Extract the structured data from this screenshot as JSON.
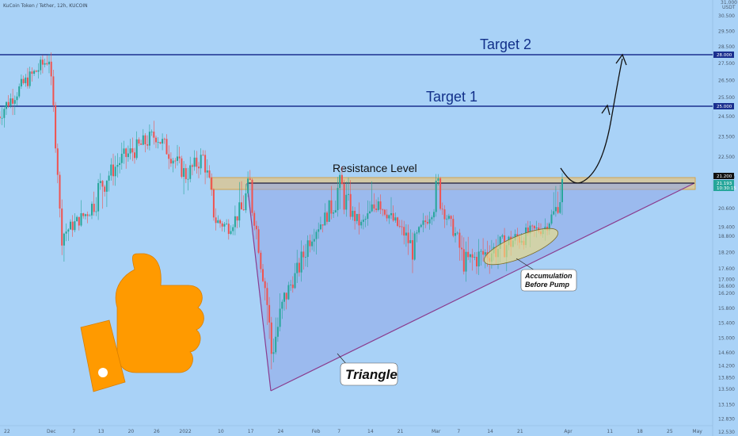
{
  "header": {
    "symbol": "KuCoin Token / Tether, 12h, KUCOIN",
    "currency_top": "31.000",
    "currency_unit": "USDT"
  },
  "annotations": {
    "target1": "Target 1",
    "target2": "Target 2",
    "resistance": "Resistance Level",
    "triangle": "Triangle",
    "accumulation_line1": "Accumulation",
    "accumulation_line2": "Before Pump"
  },
  "price_tags": {
    "target2": "28.000",
    "target1": "25.000",
    "resistance": "21.200",
    "last_price": "21.193",
    "last_time": "10:30:15"
  },
  "colors": {
    "background": "#a9d2f7",
    "bull": "#26a69a",
    "bear": "#ef5350",
    "target_line": "#1a2f8f",
    "resistance_zone": "#e8c37a",
    "triangle_fill": "#8fa5e8",
    "triangle_edge": "#8a3d8f",
    "thumb": "#ff9a00",
    "accumulation_fill": "#eedf84"
  },
  "chart_data": {
    "type": "candlestick",
    "y_axis_ticks": [
      "30.500",
      "29.500",
      "28.500",
      "27.500",
      "26.500",
      "25.500",
      "24.500",
      "23.500",
      "22.500",
      "21.500",
      "20.600",
      "19.400",
      "18.800",
      "18.200",
      "17.600",
      "17.000",
      "16.600",
      "16.200",
      "15.800",
      "15.400",
      "15.000",
      "14.600",
      "14.200",
      "13.850",
      "13.500",
      "13.150",
      "12.830",
      "12.530"
    ],
    "x_axis_ticks": [
      "22",
      "Dec",
      "7",
      "13",
      "20",
      "26",
      "2022",
      "10",
      "17",
      "24",
      "Feb",
      "7",
      "14",
      "21",
      "Mar",
      "7",
      "14",
      "21",
      "Apr",
      "11",
      "18",
      "25",
      "May"
    ],
    "levels": {
      "target2": 28.0,
      "target1": 25.0,
      "resistance": 21.2,
      "last_price": 21.193
    },
    "resistance_zone": [
      20.95,
      21.35
    ],
    "triangle": {
      "apex_left": [
        "Jan 17",
        21.2
      ],
      "bottom": [
        "Jan 22",
        13.5
      ],
      "apex_right": [
        "May",
        21.2
      ]
    },
    "segments": [
      [
        "Nov 20",
        24.5
      ],
      [
        "Nov 26",
        26.3
      ],
      [
        "Dec 1",
        27.8
      ],
      [
        "Dec 4",
        18.9
      ],
      [
        "Dec 11",
        20.6
      ],
      [
        "Dec 18",
        22.4
      ],
      [
        "Dec 26",
        23.6
      ],
      [
        "Jan 2",
        21.6
      ],
      [
        "Jan 6",
        22.5
      ],
      [
        "Jan 9",
        19.8
      ],
      [
        "Jan 12",
        19.4
      ],
      [
        "Jan 17",
        21.2
      ],
      [
        "Jan 22",
        14.6
      ],
      [
        "Jan 31",
        18.8
      ],
      [
        "Feb 7",
        21.2
      ],
      [
        "Feb 12",
        19.5
      ],
      [
        "Feb 16",
        21.0
      ],
      [
        "Feb 24",
        18.3
      ],
      [
        "Mar 2",
        21.2
      ],
      [
        "Mar 8",
        17.8
      ],
      [
        "Mar 18",
        18.5
      ],
      [
        "Mar 27",
        19.4
      ],
      [
        "Mar 31",
        21.19
      ]
    ],
    "projection": [
      [
        "Mar 31",
        22.0
      ],
      [
        "Apr 6",
        21.3
      ],
      [
        "Apr 14",
        25.4
      ],
      [
        "Apr 18",
        27.8
      ]
    ]
  }
}
